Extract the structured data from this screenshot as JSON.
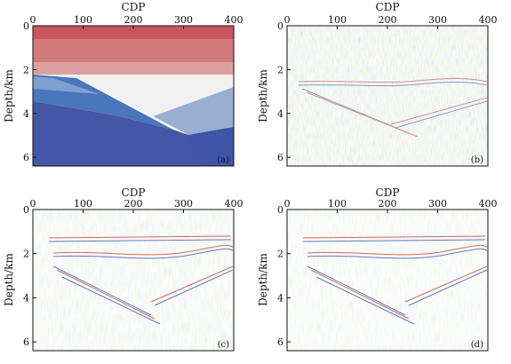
{
  "chart_data": [
    {
      "type": "heatmap",
      "panel_tag": "(a)",
      "kind": "velocity-model",
      "xlabel": "CDP",
      "ylabel": "Depth/km",
      "xlim": [
        0,
        400
      ],
      "ylim": [
        0,
        6.4
      ],
      "xticks": [
        "0",
        "100",
        "200",
        "300",
        "400"
      ],
      "yticks": [
        "0",
        "2",
        "4",
        "6"
      ],
      "layers": [
        {
          "name": "layer-1",
          "color": "#c9575d",
          "top_depth": 0.0
        },
        {
          "name": "layer-2",
          "color": "#d2797c",
          "top_depth": 0.6
        },
        {
          "name": "layer-3",
          "color": "#dc9f9f",
          "top_depth": 1.2
        },
        {
          "name": "layer-4",
          "color": "#e7c6c6",
          "top_depth": 1.7
        },
        {
          "name": "wedge",
          "color": "#f1f1f1"
        },
        {
          "name": "left-body",
          "color": "#4a76bb"
        },
        {
          "name": "right-body",
          "color": "#9aaed2"
        },
        {
          "name": "basement",
          "color": "#4656a6"
        }
      ]
    },
    {
      "type": "heatmap",
      "panel_tag": "(b)",
      "kind": "seismic-section",
      "xlabel": "CDP",
      "ylabel": "Depth/km",
      "xlim": [
        0,
        400
      ],
      "ylim": [
        0,
        6.4
      ],
      "xticks": [
        "0",
        "100",
        "200",
        "300",
        "400"
      ],
      "yticks": [
        "0",
        "2",
        "4",
        "6"
      ]
    },
    {
      "type": "heatmap",
      "panel_tag": "(c)",
      "kind": "seismic-section",
      "xlabel": "CDP",
      "ylabel": "Depth/km",
      "xlim": [
        0,
        400
      ],
      "ylim": [
        0,
        6.4
      ],
      "xticks": [
        "0",
        "100",
        "200",
        "300",
        "400"
      ],
      "yticks": [
        "0",
        "2",
        "4",
        "6"
      ]
    },
    {
      "type": "heatmap",
      "panel_tag": "(d)",
      "kind": "seismic-section",
      "xlabel": "CDP",
      "ylabel": "Depth/km",
      "xlim": [
        0,
        400
      ],
      "ylim": [
        0,
        6.4
      ],
      "xticks": [
        "0",
        "100",
        "200",
        "300",
        "400"
      ],
      "yticks": [
        "0",
        "2",
        "4",
        "6"
      ]
    }
  ],
  "colors": {
    "seismic_positive": "#c0392b",
    "seismic_negative": "#2f4fa8",
    "axis": "#111111"
  }
}
